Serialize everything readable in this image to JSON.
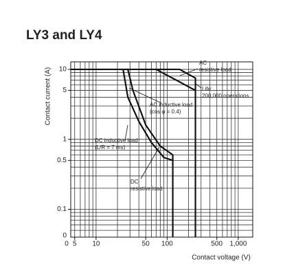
{
  "chart_data": {
    "type": "line",
    "title": "LY3 and LY4",
    "x_label": "Contact voltage (V)",
    "y_label": "Contact current (A)",
    "log_x": true,
    "log_y": true,
    "xlim": [
      4.4,
      1600
    ],
    "ylim": [
      0.04,
      12.8
    ],
    "xticks": [
      5,
      10,
      50,
      100,
      500,
      {
        "value": 1000,
        "label": "1,000"
      }
    ],
    "yticks": [
      0.1,
      0.5,
      1,
      5,
      10
    ],
    "x_origin_label": "0",
    "y_origin_label": "0",
    "grid": true,
    "xgrid": [
      5,
      6,
      7,
      8,
      9,
      10,
      20,
      30,
      40,
      50,
      60,
      70,
      80,
      90,
      100,
      200,
      300,
      400,
      500,
      600,
      700,
      800,
      900,
      1000
    ],
    "ygrid": [
      0.05,
      0.06,
      0.07,
      0.08,
      0.09,
      0.1,
      0.2,
      0.3,
      0.4,
      0.5,
      0.6,
      0.7,
      0.8,
      0.9,
      1,
      2,
      3,
      4,
      5,
      6,
      7,
      8,
      9,
      10
    ],
    "series": [
      {
        "name": [
          "AC",
          "resistive load"
        ],
        "color": "#111",
        "x": [
          4.4,
          150,
          250,
          250
        ],
        "values": [
          10,
          10,
          7.5,
          0.04
        ]
      },
      {
        "name": [
          "AC inductive load",
          "(cos φ = 0.4)"
        ],
        "color": "#111",
        "x": [
          70,
          250
        ],
        "values": [
          10,
          5
        ]
      },
      {
        "name": [
          "DC inductive load",
          "(L/R = 7 ms)"
        ],
        "color": "#111",
        "x": [
          24,
          28,
          40,
          60,
          90,
          120
        ],
        "values": [
          10,
          4,
          1.8,
          0.9,
          0.55,
          0.5
        ]
      },
      {
        "name": [
          "DC",
          "resistive load"
        ],
        "color": "#111",
        "x": [
          28,
          33,
          50,
          80,
          120,
          120
        ],
        "values": [
          10,
          5,
          1.6,
          0.8,
          0.6,
          0.04
        ]
      }
    ],
    "annotations": [
      {
        "text": [
          "Life:",
          "200,000 operations"
        ]
      }
    ]
  }
}
